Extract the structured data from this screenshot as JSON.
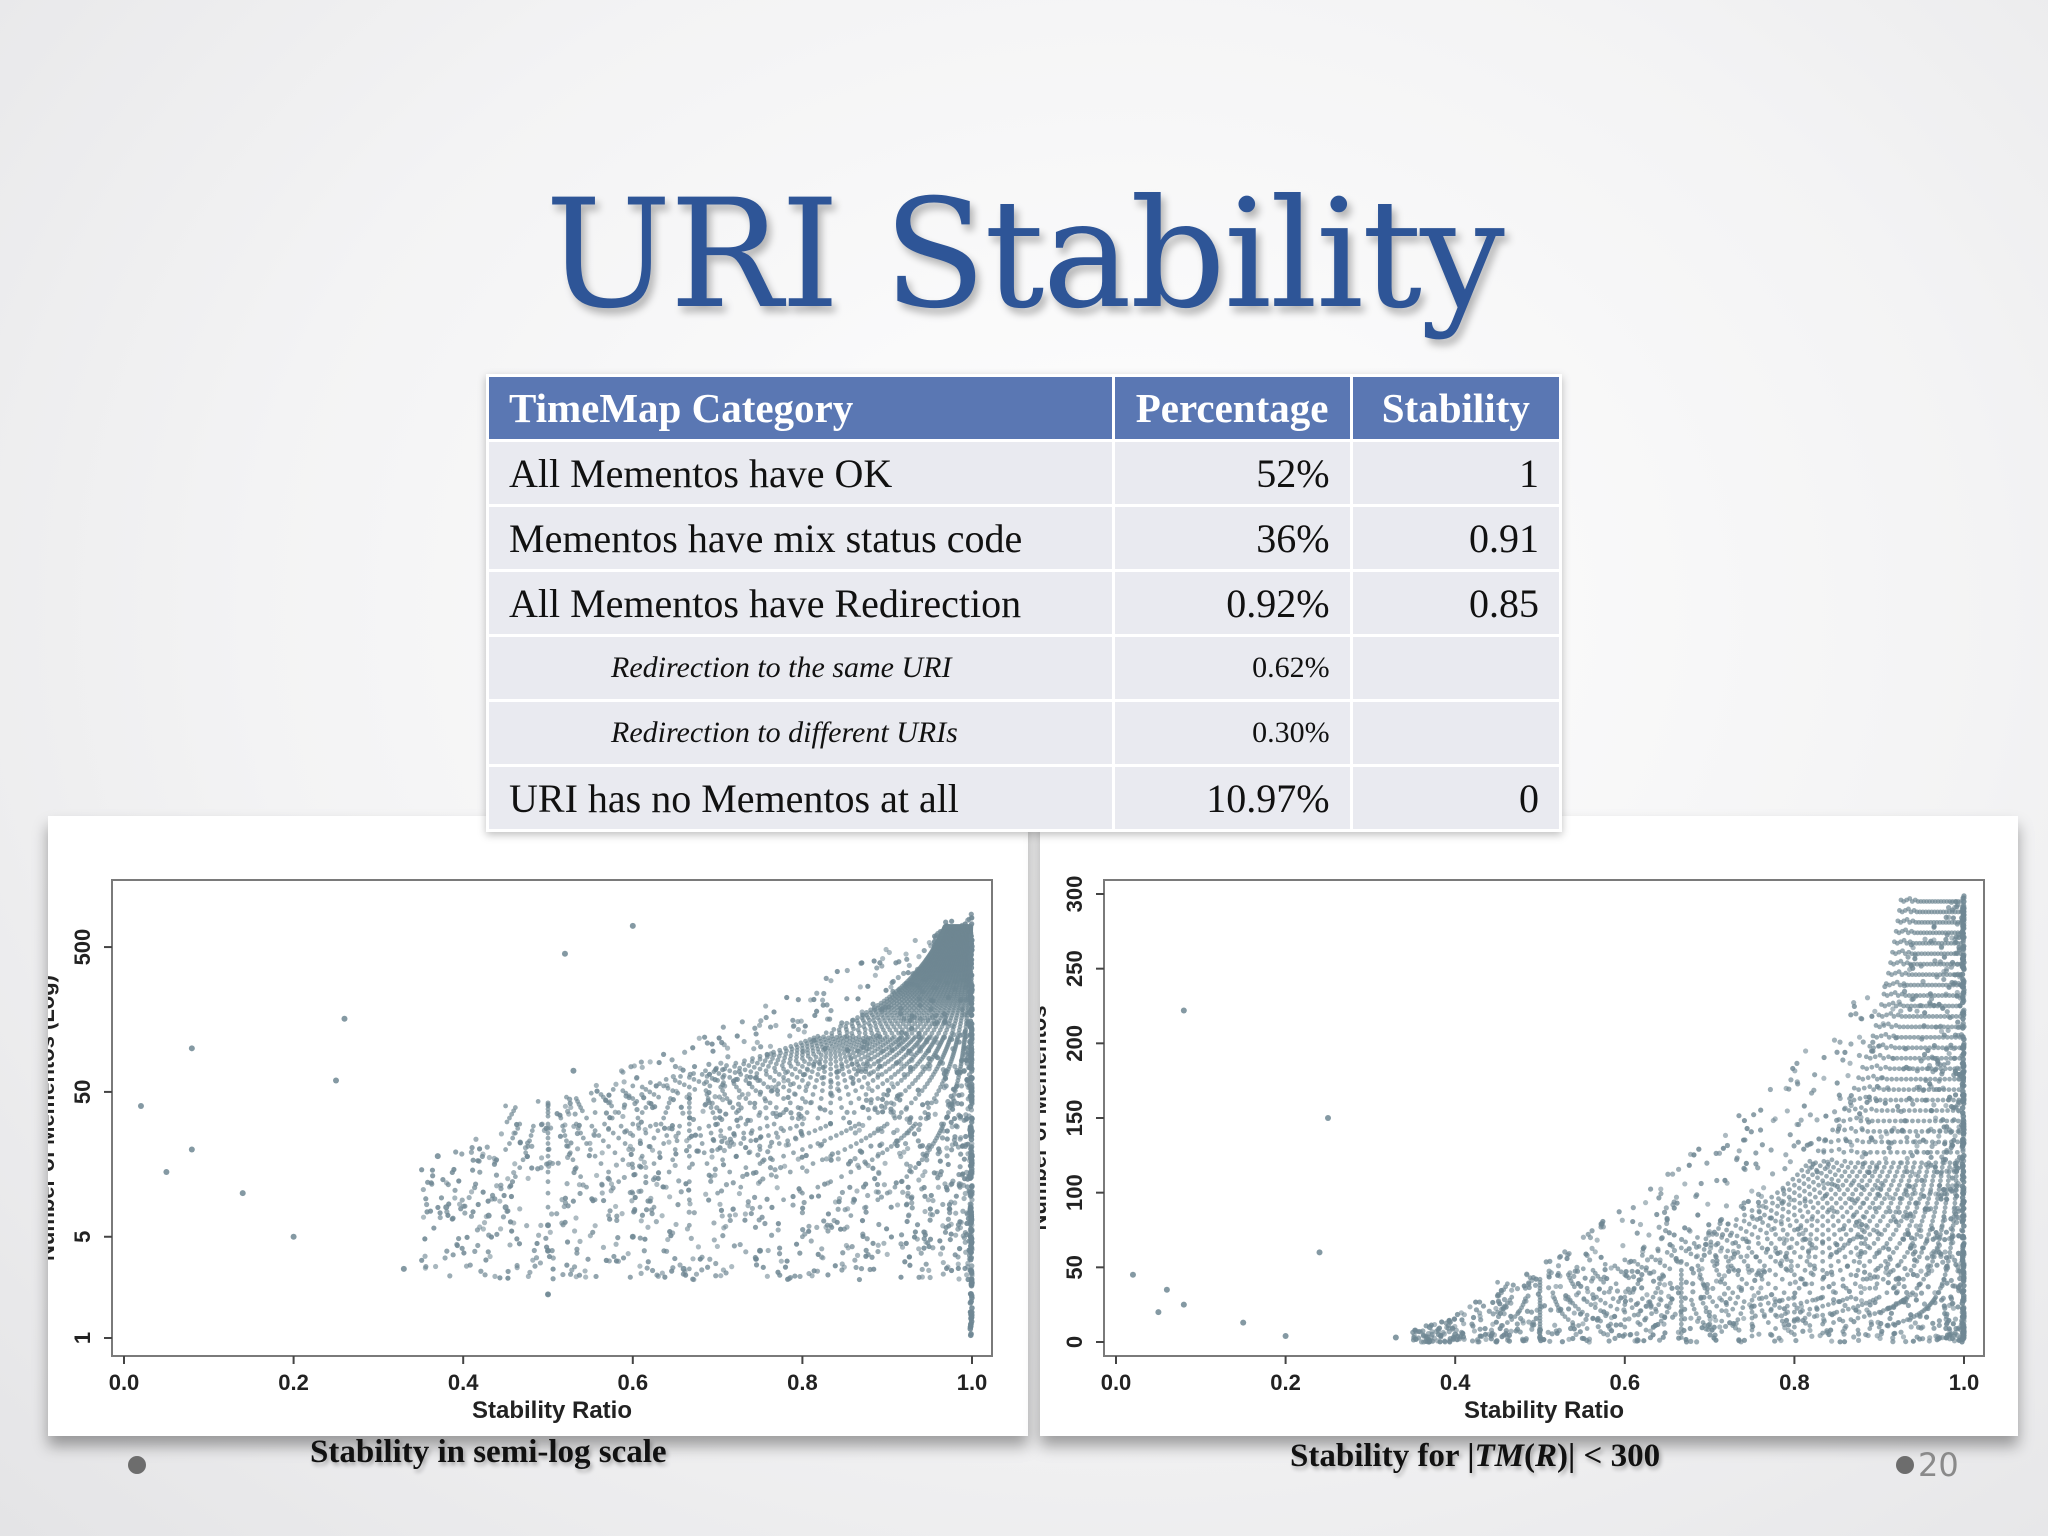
{
  "slide": {
    "title": "URI Stability",
    "page_number": "20"
  },
  "table": {
    "headers": [
      "TimeMap Category",
      "Percentage",
      "Stability"
    ],
    "rows": [
      {
        "category": "All Mementos have OK",
        "percentage": "52%",
        "stability": "1"
      },
      {
        "category": "Mementos have mix status code",
        "percentage": "36%",
        "stability": "0.91"
      },
      {
        "category": "All Mementos have Redirection",
        "percentage": "0.92%",
        "stability": "0.85"
      },
      {
        "category": "Redirection to the same URI",
        "percentage": "0.62%",
        "stability": ""
      },
      {
        "category": "Redirection to different URIs",
        "percentage": "0.30%",
        "stability": ""
      },
      {
        "category": "URI has no Mementos at all",
        "percentage": "10.97%",
        "stability": "0"
      }
    ]
  },
  "captions": {
    "left": "Stability in semi-log scale",
    "right_prefix": "Stability for |",
    "right_italic": "TM",
    "right_open": "(",
    "right_italic2": "R",
    "right_suffix": ")| < 300"
  },
  "chart_data": [
    {
      "type": "scatter",
      "xlabel": "Stability Ratio",
      "ylabel": "Number of Mementos (Log)",
      "x_ticks": [
        "0.0",
        "0.2",
        "0.4",
        "0.6",
        "0.8",
        "1.0"
      ],
      "y_ticks": [
        "1",
        "5",
        "50",
        "500"
      ],
      "xlim": [
        0,
        1
      ],
      "ylim": [
        1,
        1200
      ],
      "log_y": true,
      "point_color": "#6f8793"
    },
    {
      "type": "scatter",
      "xlabel": "Stability Ratio",
      "ylabel": "Number of Mementos",
      "x_ticks": [
        "0.0",
        "0.2",
        "0.4",
        "0.6",
        "0.8",
        "1.0"
      ],
      "y_ticks": [
        "0",
        "50",
        "100",
        "150",
        "200",
        "250",
        "300"
      ],
      "xlim": [
        0,
        1
      ],
      "ylim": [
        0,
        300
      ],
      "log_y": false,
      "point_color": "#6f8793"
    }
  ]
}
